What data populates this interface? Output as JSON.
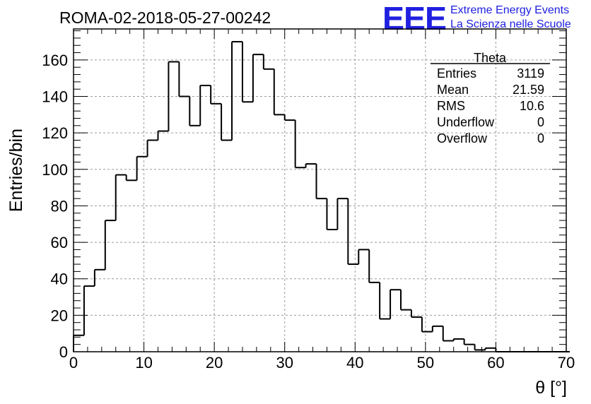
{
  "header": {
    "run_id": "ROMA-02-2018-05-27-00242",
    "logo_letters": "EEE",
    "logo_line1": "Extreme Energy Events",
    "logo_line2": "La Scienza nelle Scuole",
    "logo_color": "#2020e0"
  },
  "stats": {
    "name": "Theta",
    "rows": [
      {
        "label": "Entries",
        "value": "3119"
      },
      {
        "label": "Mean",
        "value": "21.59"
      },
      {
        "label": "RMS",
        "value": "10.6"
      },
      {
        "label": "Underflow",
        "value": "0"
      },
      {
        "label": "Overflow",
        "value": "0"
      }
    ]
  },
  "chart_data": {
    "type": "bar",
    "histogram_style": "step",
    "title": "ROMA-02-2018-05-27-00242",
    "xlabel": "θ [°]",
    "ylabel": "Entries/bin",
    "xlim": [
      0,
      70
    ],
    "ylim": [
      0,
      177
    ],
    "xticks": [
      0,
      10,
      20,
      30,
      40,
      50,
      60,
      70
    ],
    "yticks": [
      0,
      20,
      40,
      60,
      80,
      100,
      120,
      140,
      160
    ],
    "grid": true,
    "bin_width": 1.5,
    "bin_edges_start": 0,
    "values": [
      9,
      36,
      45,
      72,
      97,
      94,
      107,
      116,
      121,
      159,
      140,
      124,
      146,
      136,
      116,
      170,
      137,
      163,
      155,
      130,
      127,
      101,
      103,
      84,
      67,
      84,
      48,
      56,
      38,
      18,
      34,
      23,
      19,
      11,
      14,
      6,
      7,
      4,
      1,
      2,
      0,
      0,
      0,
      0,
      0,
      0,
      0
    ]
  }
}
